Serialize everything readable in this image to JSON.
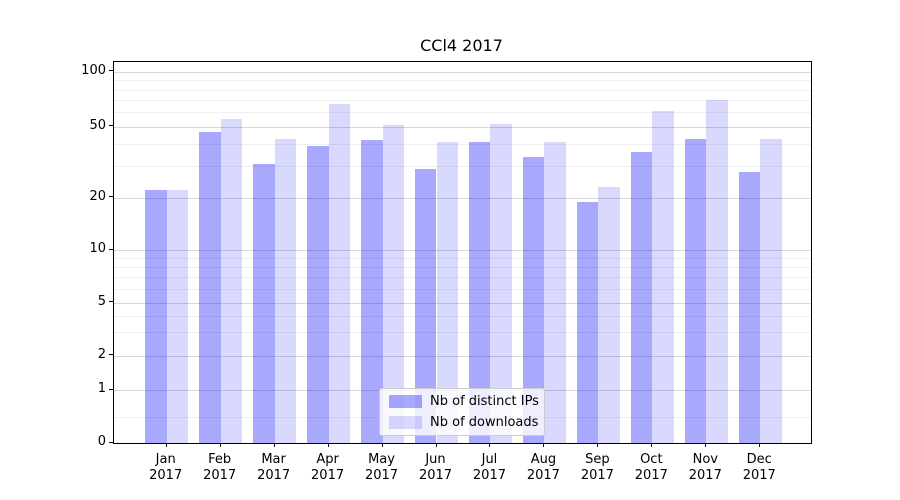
{
  "chart_data": {
    "type": "bar",
    "title": "CCl4 2017",
    "categories": [
      "Jan",
      "Feb",
      "Mar",
      "Apr",
      "May",
      "Jun",
      "Jul",
      "Aug",
      "Sep",
      "Oct",
      "Nov",
      "Dec"
    ],
    "x_tick_year": "2017",
    "series": [
      {
        "name": "Nb of distinct IPs",
        "color": "rgba(0,0,245,0.34)",
        "values": [
          22,
          47,
          31,
          39,
          42,
          29,
          41,
          34,
          19,
          36,
          43,
          28
        ]
      },
      {
        "name": "Nb of downloads",
        "color": "rgba(0,0,245,0.15)",
        "values": [
          22,
          55,
          43,
          67,
          51,
          41,
          52,
          41,
          23,
          61,
          70,
          43
        ]
      }
    ],
    "y_axis": {
      "scale": "symlog",
      "major_ticks": [
        0,
        1,
        2,
        5,
        10,
        20,
        50,
        100
      ],
      "minor_ticks": [
        0.5,
        3,
        4,
        6,
        7,
        8,
        9,
        30,
        40,
        60,
        70,
        80,
        90
      ],
      "ylim": [
        0,
        114
      ]
    },
    "grid": true,
    "legend": {
      "position": "lower center",
      "entries": [
        "Nb of distinct IPs",
        "Nb of downloads"
      ]
    },
    "colors": {
      "major_grid": "#d9d9d9",
      "minor_grid": "#efefef",
      "spine": "#000000",
      "text": "#000000"
    }
  }
}
